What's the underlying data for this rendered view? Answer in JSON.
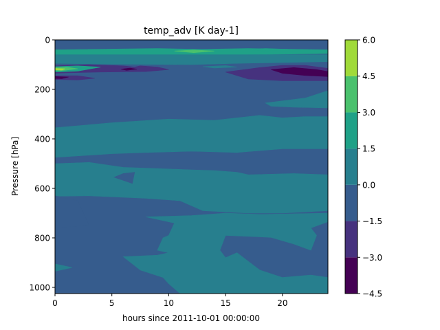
{
  "chart_data": {
    "type": "heatmap",
    "subtype": "filled-contour",
    "title": "temp_adv [K day-1]",
    "xlabel": "hours since 2011-10-01 00:00:00",
    "ylabel": "Pressure [hPa]",
    "xlim": [
      0,
      24
    ],
    "ylim": [
      1025,
      0
    ],
    "y_inverted": true,
    "x_ticks": [
      "0",
      "5",
      "10",
      "15",
      "20"
    ],
    "x_tick_values": [
      0,
      5,
      10,
      15,
      20
    ],
    "y_ticks": [
      "0",
      "200",
      "400",
      "600",
      "800",
      "1000"
    ],
    "y_tick_values": [
      0,
      200,
      400,
      600,
      800,
      1000
    ],
    "colorbar": {
      "levels": [
        -4.5,
        -3.0,
        -1.5,
        0.0,
        1.5,
        3.0,
        4.5,
        6.0
      ],
      "tick_labels": [
        "6.0",
        "4.5",
        "3.0",
        "1.5",
        "0.0",
        "−1.5",
        "−3.0",
        "−4.5"
      ],
      "colors": [
        "#440154",
        "#46327e",
        "#365c8d",
        "#277f8e",
        "#1fa187",
        "#4ac16d",
        "#a0da39",
        "#fde725"
      ]
    },
    "regions": [
      {
        "band": [
          1.5,
          3.0
        ],
        "points": [
          [
            0,
            40
          ],
          [
            9,
            35
          ],
          [
            13,
            38
          ],
          [
            17,
            35
          ],
          [
            24,
            40
          ],
          [
            24,
            55
          ],
          [
            17,
            60
          ],
          [
            13,
            62
          ],
          [
            9,
            60
          ],
          [
            0,
            60
          ]
        ]
      },
      {
        "band": [
          3.0,
          4.5
        ],
        "points": [
          [
            10.5,
            45
          ],
          [
            12.2,
            41
          ],
          [
            14,
            45
          ],
          [
            12.2,
            52
          ]
        ]
      },
      {
        "band": [
          1.5,
          3.0
        ],
        "points": [
          [
            16.5,
            38
          ],
          [
            18.5,
            35
          ],
          [
            20.5,
            38
          ],
          [
            18.5,
            45
          ]
        ]
      },
      {
        "band": [
          0.0,
          1.5
        ],
        "points": [
          [
            0,
            60
          ],
          [
            24,
            60
          ],
          [
            24,
            88
          ],
          [
            16,
            95
          ],
          [
            12,
            100
          ],
          [
            5,
            98
          ],
          [
            0,
            95
          ]
        ]
      },
      {
        "band": [
          0.0,
          1.5
        ],
        "points": [
          [
            13,
            108
          ],
          [
            15,
            104
          ],
          [
            16,
            110
          ],
          [
            14,
            114
          ]
        ]
      },
      {
        "band": [
          -3.0,
          -1.5
        ],
        "points": [
          [
            0,
            105
          ],
          [
            3,
            100
          ],
          [
            6,
            105
          ],
          [
            7,
            110
          ],
          [
            7.5,
            105
          ],
          [
            9,
            110
          ],
          [
            10,
            120
          ],
          [
            8,
            128
          ],
          [
            4,
            130
          ],
          [
            1,
            133
          ],
          [
            0,
            135
          ]
        ]
      },
      {
        "band": [
          1.5,
          3.0
        ],
        "points": [
          [
            0,
            108
          ],
          [
            2,
            105
          ],
          [
            4,
            110
          ],
          [
            2,
            126
          ],
          [
            0,
            130
          ]
        ]
      },
      {
        "band": [
          3.0,
          4.5
        ],
        "points": [
          [
            0,
            112
          ],
          [
            1,
            110
          ],
          [
            2,
            117
          ],
          [
            0.5,
            125
          ],
          [
            0,
            124
          ]
        ]
      },
      {
        "band": [
          4.5,
          6.0
        ],
        "points": [
          [
            0,
            115
          ],
          [
            0.9,
            117
          ],
          [
            0.6,
            122
          ],
          [
            0,
            121
          ]
        ]
      },
      {
        "band": [
          -4.5,
          -3.0
        ],
        "points": [
          [
            5.8,
            118
          ],
          [
            6.6,
            114
          ],
          [
            7.2,
            118
          ],
          [
            6.3,
            123
          ]
        ]
      },
      {
        "band": [
          -3.0,
          -1.5
        ],
        "points": [
          [
            0,
            145
          ],
          [
            2,
            145
          ],
          [
            3.5,
            155
          ],
          [
            2,
            162
          ],
          [
            0,
            160
          ]
        ]
      },
      {
        "band": [
          -4.5,
          -3.0
        ],
        "points": [
          [
            0,
            148
          ],
          [
            1.2,
            150
          ],
          [
            0.6,
            157
          ],
          [
            0,
            156
          ]
        ]
      },
      {
        "band": [
          -3.0,
          -1.5
        ],
        "points": [
          [
            15,
            130
          ],
          [
            18,
            112
          ],
          [
            20,
            103
          ],
          [
            22,
            103
          ],
          [
            24,
            115
          ],
          [
            24,
            165
          ],
          [
            20,
            165
          ],
          [
            17,
            158
          ]
        ]
      },
      {
        "band": [
          -4.5,
          -3.0
        ],
        "points": [
          [
            19,
            120
          ],
          [
            21,
            112
          ],
          [
            23,
            120
          ],
          [
            24,
            128
          ],
          [
            24,
            148
          ],
          [
            22,
            144
          ],
          [
            20,
            135
          ]
        ]
      },
      {
        "band": [
          0.0,
          1.5
        ],
        "points": [
          [
            18.5,
            255
          ],
          [
            22,
            235
          ],
          [
            24,
            205
          ],
          [
            24,
            275
          ],
          [
            21,
            272
          ],
          [
            19,
            268
          ]
        ]
      },
      {
        "band": [
          0.0,
          1.5
        ],
        "points": [
          [
            0,
            355
          ],
          [
            5,
            335
          ],
          [
            10,
            320
          ],
          [
            14,
            325
          ],
          [
            16,
            315
          ],
          [
            18,
            305
          ],
          [
            20,
            315
          ],
          [
            22,
            310
          ],
          [
            24,
            310
          ],
          [
            24,
            440
          ],
          [
            20,
            440
          ],
          [
            16,
            455
          ],
          [
            12,
            450
          ],
          [
            8,
            455
          ],
          [
            5,
            460
          ],
          [
            0,
            475
          ]
        ]
      },
      {
        "band": [
          0.0,
          1.5
        ],
        "points": [
          [
            0,
            500
          ],
          [
            3,
            495
          ],
          [
            6,
            515
          ],
          [
            9,
            520
          ],
          [
            12,
            525
          ],
          [
            14,
            528
          ],
          [
            16,
            535
          ],
          [
            17,
            545
          ],
          [
            21,
            540
          ],
          [
            24,
            545
          ],
          [
            24,
            690
          ],
          [
            20,
            700
          ],
          [
            17,
            700
          ],
          [
            13,
            690
          ],
          [
            11,
            650
          ],
          [
            8,
            640
          ],
          [
            3,
            630
          ],
          [
            0,
            632
          ]
        ]
      },
      {
        "band": [
          -1.5,
          0.0
        ],
        "points": [
          [
            6,
            540
          ],
          [
            7,
            535
          ],
          [
            6.8,
            580
          ],
          [
            5.2,
            555
          ]
        ]
      },
      {
        "band": [
          -1.5,
          0.0
        ],
        "points": [
          [
            0,
            630
          ],
          [
            2,
            650
          ],
          [
            3,
            750
          ],
          [
            0,
            760
          ]
        ]
      },
      {
        "band": [
          0.0,
          1.5
        ],
        "points": [
          [
            8,
            715
          ],
          [
            10.5,
            740
          ],
          [
            10,
            790
          ],
          [
            9.5,
            800
          ],
          [
            9,
            850
          ],
          [
            10,
            860
          ],
          [
            9,
            870
          ],
          [
            6,
            876
          ],
          [
            7.5,
            930
          ],
          [
            9.5,
            960
          ],
          [
            10,
            985
          ],
          [
            11,
            1025
          ],
          [
            24,
            1025
          ],
          [
            24,
            960
          ],
          [
            22.5,
            950
          ],
          [
            20,
            960
          ],
          [
            18,
            930
          ],
          [
            16,
            860
          ],
          [
            15,
            880
          ],
          [
            14.5,
            850
          ],
          [
            15,
            790
          ],
          [
            19,
            798
          ],
          [
            21,
            825
          ],
          [
            22.5,
            850
          ],
          [
            23,
            790
          ],
          [
            22.5,
            760
          ],
          [
            24,
            735
          ],
          [
            24,
            700
          ],
          [
            18,
            705
          ],
          [
            15,
            700
          ],
          [
            12,
            710
          ]
        ]
      },
      {
        "band": [
          0.0,
          1.5
        ],
        "points": [
          [
            0,
            905
          ],
          [
            1.5,
            920
          ],
          [
            0,
            935
          ]
        ]
      }
    ]
  }
}
